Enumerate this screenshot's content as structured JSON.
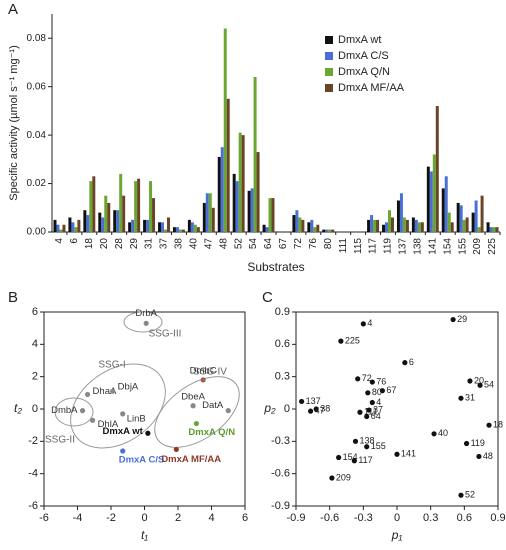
{
  "chart_data": [
    {
      "type": "bar",
      "panel": "A",
      "ylabel": "Specific activity (µmol s⁻¹ mg⁻¹)",
      "xlabel": "Substrates",
      "categories": [
        "4",
        "6",
        "18",
        "20",
        "28",
        "29",
        "31",
        "37",
        "38",
        "40",
        "47",
        "48",
        "52",
        "54",
        "64",
        "67",
        "72",
        "76",
        "80",
        "111",
        "115",
        "117",
        "119",
        "137",
        "138",
        "141",
        "154",
        "155",
        "209",
        "225"
      ],
      "series": [
        {
          "name": "DmxA wt",
          "color": "#111111",
          "values": [
            0.005,
            0.006,
            0.009,
            0.008,
            0.009,
            0.004,
            0.005,
            0.004,
            0.002,
            0.005,
            0.012,
            0.031,
            0.024,
            0.017,
            0.003,
            0.0,
            0.007,
            0.004,
            0.001,
            0.0,
            0.0,
            0.005,
            0.003,
            0.013,
            0.006,
            0.027,
            0.018,
            0.012,
            0.008,
            0.004
          ]
        },
        {
          "name": "DmxA C/S",
          "color": "#4a6fd6",
          "values": [
            0.003,
            0.004,
            0.007,
            0.006,
            0.009,
            0.005,
            0.005,
            0.004,
            0.002,
            0.004,
            0.016,
            0.035,
            0.021,
            0.018,
            0.002,
            0.0,
            0.009,
            0.005,
            0.001,
            0.0,
            0.0,
            0.007,
            0.004,
            0.016,
            0.005,
            0.025,
            0.023,
            0.011,
            0.013,
            0.002
          ]
        },
        {
          "name": "DmxA Q/N",
          "color": "#6aa632",
          "values": [
            0.001,
            0.002,
            0.021,
            0.015,
            0.024,
            0.021,
            0.021,
            0.001,
            0.001,
            0.003,
            0.016,
            0.084,
            0.041,
            0.064,
            0.014,
            0.0,
            0.006,
            0.002,
            0.001,
            0.0,
            0.0,
            0.005,
            0.009,
            0.006,
            0.004,
            0.032,
            0.008,
            0.005,
            0.002,
            0.002
          ]
        },
        {
          "name": "DmxA MF/AA",
          "color": "#6b4426",
          "values": [
            0.003,
            0.005,
            0.023,
            0.012,
            0.015,
            0.022,
            0.014,
            0.006,
            0.001,
            0.002,
            0.01,
            0.055,
            0.04,
            0.033,
            0.014,
            0.0,
            0.005,
            0.003,
            0.001,
            0.0,
            0.0,
            0.005,
            0.006,
            0.005,
            0.004,
            0.052,
            0.004,
            0.006,
            0.015,
            0.002
          ]
        }
      ],
      "ylim": [
        0,
        0.09
      ],
      "yticks": [
        {
          "value": 0,
          "label": "0.00"
        },
        0.02,
        0.04,
        0.06,
        0.08
      ],
      "legend": "upper right"
    },
    {
      "type": "scatter",
      "panel": "B",
      "xlabel": "t₁",
      "ylabel": "t₂",
      "labels": [
        "DrbA",
        "DhaA",
        "DbjA",
        "DhlA",
        "DmbA",
        "LinB",
        "DmxA wt",
        "DmxA C/S",
        "DmbC",
        "DbeA",
        "DatA",
        "DmxA Q/N",
        "DmxA MF/AA"
      ],
      "x": [
        0.1,
        -3.4,
        -1.9,
        -3.1,
        -3.7,
        -1.3,
        0.2,
        -1.3,
        3.5,
        2.9,
        5.0,
        3.1,
        1.9
      ],
      "y": [
        5.3,
        0.9,
        1.1,
        -0.7,
        -0.1,
        -0.3,
        -1.5,
        -2.6,
        1.8,
        0.2,
        -0.1,
        -0.9,
        -2.5
      ],
      "colors": [
        "#888888",
        "#888888",
        "#888888",
        "#888888",
        "#888888",
        "#888888",
        "#111111",
        "#4a6fd6",
        "#a0604a",
        "#888888",
        "#888888",
        "#6aa632",
        "#8b3a2a"
      ],
      "label_colors": [
        "#333333",
        "#333333",
        "#333333",
        "#333333",
        "#333333",
        "#333333",
        "#111111",
        "#4a6fd6",
        "#333333",
        "#333333",
        "#333333",
        "#5c9a2e",
        "#8b3a2a"
      ],
      "bold": [
        "DmxA wt",
        "DmxA C/S",
        "DmxA Q/N",
        "DmxA MF/AA"
      ],
      "groups": [
        "SSG-I",
        "SSG-II",
        "SSG-III",
        "SSG-IV"
      ],
      "xlim": [
        -6,
        6
      ],
      "xticks": [
        -6,
        -4,
        -2,
        0,
        2,
        4,
        6
      ],
      "ylim": [
        -6,
        6
      ],
      "yticks": [
        -6,
        -4,
        -2,
        0,
        2,
        4,
        6
      ]
    },
    {
      "type": "scatter",
      "panel": "C",
      "xlabel": "p₁",
      "ylabel": "p₂",
      "labels": [
        "29",
        "4",
        "225",
        "6",
        "72",
        "76",
        "67",
        "20",
        "54",
        "137",
        "38",
        "47",
        "80",
        "4",
        "37",
        "111",
        "64",
        "31",
        "18",
        "40",
        "138",
        "155",
        "141",
        "154",
        "117",
        "119",
        "48",
        "209",
        "52"
      ],
      "x": [
        0.5,
        -0.3,
        -0.5,
        0.07,
        -0.35,
        -0.22,
        -0.13,
        0.65,
        0.74,
        -0.85,
        -0.72,
        -0.77,
        -0.26,
        -0.22,
        -0.25,
        -0.33,
        -0.27,
        0.57,
        0.82,
        0.33,
        -0.37,
        -0.27,
        0.0,
        -0.52,
        -0.38,
        0.62,
        0.73,
        -0.58,
        0.57
      ],
      "y": [
        0.83,
        0.79,
        0.63,
        0.43,
        0.28,
        0.25,
        0.17,
        0.26,
        0.22,
        0.07,
        0.0,
        -0.02,
        0.15,
        0.06,
        -0.01,
        -0.03,
        -0.07,
        0.1,
        -0.15,
        -0.23,
        -0.3,
        -0.35,
        -0.42,
        -0.45,
        -0.48,
        -0.32,
        -0.44,
        -0.64,
        -0.8
      ],
      "color": "#111111",
      "xlim": [
        -0.9,
        0.9
      ],
      "xticks": [
        -0.9,
        -0.6,
        -0.3,
        0,
        0.3,
        0.6,
        0.9
      ],
      "ylim": [
        -0.9,
        0.9
      ],
      "yticks": [
        0.9,
        0.6,
        0.3,
        0,
        -0.3,
        -0.6,
        -0.9
      ]
    }
  ]
}
